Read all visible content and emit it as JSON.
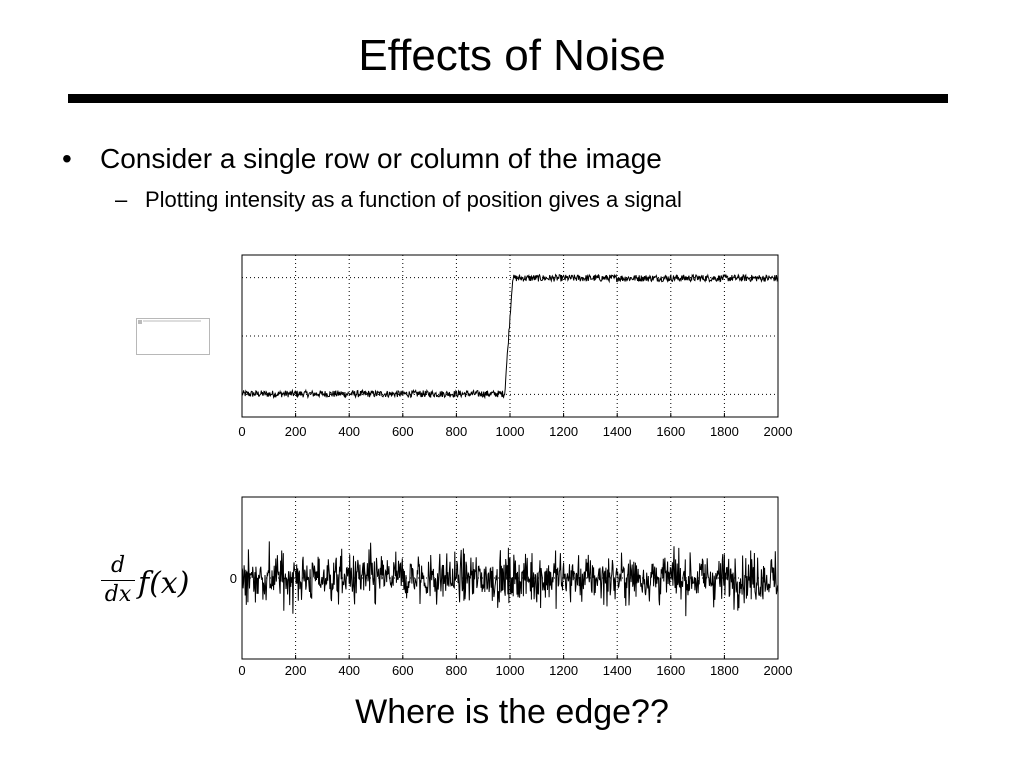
{
  "slide": {
    "title": "Effects of Noise",
    "bullets": [
      {
        "text": "Consider a single row or column of the image",
        "marker": "•"
      },
      {
        "text": "Plotting intensity as a function of position gives a signal",
        "marker": "–"
      }
    ],
    "formula": {
      "numerator": "d",
      "denominator": "dx",
      "expression": "f(x)"
    },
    "caption": "Where is the edge??"
  },
  "chart_data": [
    {
      "type": "line",
      "title": "",
      "xlabel": "",
      "ylabel": "",
      "xlim": [
        0,
        2000
      ],
      "ylim": [
        -0.2,
        1.2
      ],
      "xticks": [
        0,
        200,
        400,
        600,
        800,
        1000,
        1200,
        1400,
        1600,
        1800,
        2000
      ],
      "xtick_labels": [
        "0",
        "200",
        "400",
        "600",
        "800",
        "1000",
        "1200",
        "1400",
        "1600",
        "1800",
        "2000"
      ],
      "grid": true,
      "grid_style": "dotted",
      "series": [
        {
          "description": "noisy step signal",
          "x": [
            0,
            980,
            1010,
            2000
          ],
          "y": [
            0,
            0,
            1,
            1
          ],
          "noise_amplitude": 0.03
        }
      ]
    },
    {
      "type": "line",
      "title": "",
      "xlabel": "",
      "ylabel": "",
      "xlim": [
        0,
        2000
      ],
      "ylim": [
        -1,
        1
      ],
      "xticks": [
        0,
        200,
        400,
        600,
        800,
        1000,
        1200,
        1400,
        1600,
        1800,
        2000
      ],
      "xtick_labels": [
        "0",
        "200",
        "400",
        "600",
        "800",
        "1000",
        "1200",
        "1400",
        "1600",
        "1800",
        "2000"
      ],
      "yticks": [
        0
      ],
      "ytick_labels": [
        "0"
      ],
      "grid": true,
      "grid_style": "dotted",
      "series": [
        {
          "description": "derivative of noisy signal",
          "x": [
            0,
            2000
          ],
          "y": [
            0,
            0
          ],
          "noise_amplitude": 0.95
        }
      ]
    }
  ]
}
